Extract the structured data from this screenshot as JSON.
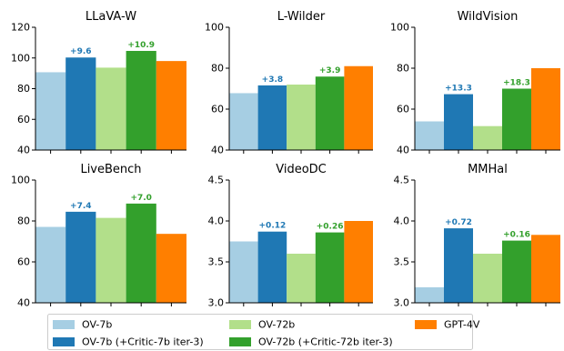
{
  "colors": {
    "OV-7b": "#a6cee3",
    "OV-7b (+Critic-7b iter-3)": "#1f78b4",
    "OV-72b": "#b2df8a",
    "OV-72b (+Critic-72b iter-3)": "#33a02c",
    "GPT-4V": "#ff7f00"
  },
  "legend": [
    {
      "label": "OV-7b",
      "color": "#a6cee3"
    },
    {
      "label": "OV-7b (+Critic-7b iter-3)",
      "color": "#1f78b4"
    },
    {
      "label": "OV-72b",
      "color": "#b2df8a"
    },
    {
      "label": "OV-72b (+Critic-72b iter-3)",
      "color": "#33a02c"
    },
    {
      "label": "GPT-4V",
      "color": "#ff7f00"
    }
  ],
  "chart_data": [
    {
      "type": "bar",
      "title": "LLaVA-W",
      "ylim": [
        40,
        120
      ],
      "yticks": [
        "40",
        "60",
        "80",
        "100",
        "120"
      ],
      "categories": [
        "OV-7b",
        "OV-7b (+Critic-7b iter-3)",
        "OV-72b",
        "OV-72b (+Critic-72b iter-3)",
        "GPT-4V"
      ],
      "values": [
        90.7,
        100.3,
        93.7,
        104.6,
        98.0
      ],
      "annotations": [
        {
          "bar": 1,
          "text": "+9.6"
        },
        {
          "bar": 3,
          "text": "+10.9"
        }
      ]
    },
    {
      "type": "bar",
      "title": "L-Wilder",
      "ylim": [
        40,
        100
      ],
      "yticks": [
        "40",
        "60",
        "80",
        "100"
      ],
      "categories": [
        "OV-7b",
        "OV-7b (+Critic-7b iter-3)",
        "OV-72b",
        "OV-72b (+Critic-72b iter-3)",
        "GPT-4V"
      ],
      "values": [
        67.8,
        71.6,
        72.0,
        75.9,
        81.0
      ],
      "annotations": [
        {
          "bar": 1,
          "text": "+3.8"
        },
        {
          "bar": 3,
          "text": "+3.9"
        }
      ]
    },
    {
      "type": "bar",
      "title": "WildVision",
      "ylim": [
        40,
        100
      ],
      "yticks": [
        "40",
        "60",
        "80",
        "100"
      ],
      "categories": [
        "OV-7b",
        "OV-7b (+Critic-7b iter-3)",
        "OV-72b",
        "OV-72b (+Critic-72b iter-3)",
        "GPT-4V"
      ],
      "values": [
        54.0,
        67.3,
        51.7,
        70.0,
        80.0
      ],
      "annotations": [
        {
          "bar": 1,
          "text": "+13.3"
        },
        {
          "bar": 3,
          "text": "+18.3"
        }
      ]
    },
    {
      "type": "bar",
      "title": "LiveBench",
      "ylim": [
        40,
        100
      ],
      "yticks": [
        "40",
        "60",
        "80",
        "100"
      ],
      "categories": [
        "OV-7b",
        "OV-7b (+Critic-7b iter-3)",
        "OV-72b",
        "OV-72b (+Critic-72b iter-3)",
        "GPT-4V"
      ],
      "values": [
        77.1,
        84.5,
        81.5,
        88.5,
        73.7
      ],
      "annotations": [
        {
          "bar": 1,
          "text": "+7.4"
        },
        {
          "bar": 3,
          "text": "+7.0"
        }
      ]
    },
    {
      "type": "bar",
      "title": "VideoDC",
      "ylim": [
        3.0,
        4.5
      ],
      "yticks": [
        "3.0",
        "3.5",
        "4.0",
        "4.5"
      ],
      "categories": [
        "OV-7b",
        "OV-7b (+Critic-7b iter-3)",
        "OV-72b",
        "OV-72b (+Critic-72b iter-3)",
        "GPT-4V"
      ],
      "values": [
        3.75,
        3.87,
        3.6,
        3.86,
        4.0
      ],
      "annotations": [
        {
          "bar": 1,
          "text": "+0.12"
        },
        {
          "bar": 3,
          "text": "+0.26"
        }
      ]
    },
    {
      "type": "bar",
      "title": "MMHal",
      "ylim": [
        3.0,
        4.5
      ],
      "yticks": [
        "3.0",
        "3.5",
        "4.0",
        "4.5"
      ],
      "categories": [
        "OV-7b",
        "OV-7b (+Critic-7b iter-3)",
        "OV-72b",
        "OV-72b (+Critic-72b iter-3)",
        "GPT-4V"
      ],
      "values": [
        3.19,
        3.91,
        3.6,
        3.76,
        3.83
      ],
      "annotations": [
        {
          "bar": 1,
          "text": "+0.72"
        },
        {
          "bar": 3,
          "text": "+0.16"
        }
      ]
    }
  ]
}
